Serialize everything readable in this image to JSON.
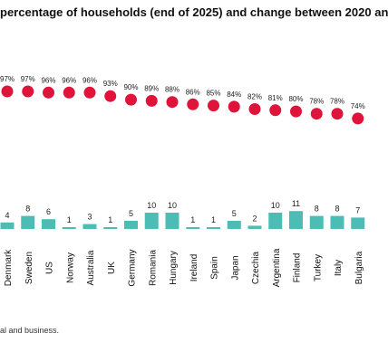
{
  "chart_data": {
    "type": "bar",
    "title": "percentage of households (end of 2025) and change between 2020 an",
    "footnote": "al and business.",
    "categories": [
      "Denmark",
      "Sweden",
      "US",
      "Norway",
      "Australia",
      "UK",
      "Germany",
      "Romania",
      "Hungary",
      "Ireland",
      "Spain",
      "Japan",
      "Czechia",
      "Argentina",
      "Finland",
      "Turkey",
      "Italy",
      "Bulgaria"
    ],
    "series": [
      {
        "kind": "dots",
        "values": [
          97,
          97,
          96,
          96,
          96,
          93,
          90,
          89,
          88,
          86,
          85,
          84,
          82,
          81,
          80,
          78,
          78,
          74
        ],
        "labels": [
          "97%",
          "97%",
          "96%",
          "96%",
          "96%",
          "93%",
          "90%",
          "89%",
          "88%",
          "86%",
          "85%",
          "84%",
          "82%",
          "81%",
          "80%",
          "78%",
          "78%",
          "74%"
        ]
      },
      {
        "kind": "bars",
        "values": [
          4,
          8,
          6,
          1,
          3,
          1,
          5,
          10,
          10,
          1,
          1,
          5,
          2,
          10,
          11,
          8,
          8,
          7
        ]
      }
    ],
    "dot_color": "#e0133a",
    "bar_color": "#4bbdb4"
  }
}
